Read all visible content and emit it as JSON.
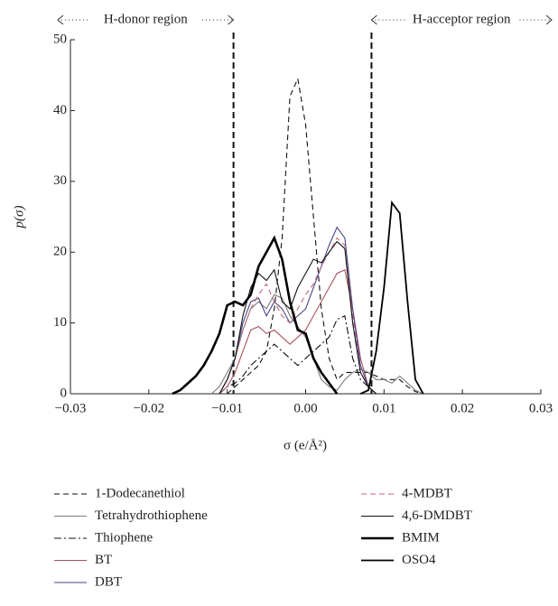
{
  "chart_data": {
    "type": "line",
    "xlabel": "σ (e/Å²)",
    "ylabel": "p(σ)",
    "annotations": [
      {
        "text": "H-donor region",
        "x": -0.0092
      },
      {
        "text": "H-acceptor region",
        "x": 0.0084
      }
    ],
    "x": [
      -0.018,
      -0.017,
      -0.016,
      -0.015,
      -0.014,
      -0.013,
      -0.012,
      -0.011,
      -0.01,
      -0.009,
      -0.008,
      -0.007,
      -0.006,
      -0.005,
      -0.004,
      -0.003,
      -0.002,
      -0.001,
      0,
      0.001,
      0.002,
      0.003,
      0.004,
      0.005,
      0.006,
      0.007,
      0.008,
      0.009,
      0.01,
      0.011,
      0.012,
      0.013,
      0.014,
      0.015,
      0.016
    ],
    "xlim": [
      -0.03,
      0.03
    ],
    "xticks": [
      {
        "value": -0.03,
        "label": "−0.03"
      },
      {
        "value": -0.02,
        "label": "−0.02"
      },
      {
        "value": -0.01,
        "label": "−0.01"
      },
      {
        "value": 0,
        "label": "0.00"
      },
      0.01,
      0.02,
      0.03
    ],
    "ylim": [
      0,
      50
    ],
    "yticks": [
      0,
      10,
      20,
      30,
      40,
      50
    ],
    "series": [
      {
        "name": "1-Dodecanethiol",
        "color": "#111111",
        "dash": "dashed",
        "style": "thin",
        "values": [
          null,
          null,
          null,
          null,
          null,
          null,
          null,
          null,
          0,
          1,
          2,
          3,
          4,
          6,
          12,
          22,
          42,
          44.5,
          38,
          25,
          12,
          5,
          2,
          3,
          3,
          3,
          3,
          2.5,
          2,
          2,
          2,
          1,
          0.3,
          0,
          null
        ]
      },
      {
        "name": "Tetrahydrothiophene",
        "color": "#7a7a7a",
        "dash": "solid",
        "style": "thin",
        "values": [
          null,
          null,
          null,
          null,
          null,
          null,
          0,
          1,
          3,
          5,
          9,
          12,
          13,
          12,
          14,
          13.5,
          11,
          9.5,
          8,
          5,
          2,
          1,
          0.5,
          2,
          3,
          3.5,
          3,
          2,
          2,
          1.5,
          2.5,
          1.5,
          0.5,
          0,
          null
        ]
      },
      {
        "name": "Thiophene",
        "color": "#111111",
        "dash": "dashdot",
        "style": "thin",
        "values": [
          null,
          null,
          null,
          null,
          null,
          null,
          null,
          0,
          1,
          1.5,
          2.5,
          4,
          5,
          6,
          7,
          6,
          5,
          4,
          5,
          6,
          7,
          8,
          10.5,
          11,
          5,
          2,
          1,
          0,
          null,
          null,
          null,
          null,
          null,
          null,
          null
        ]
      },
      {
        "name": "BT",
        "color": "#a8525f",
        "dash": "solid",
        "style": "thin",
        "values": [
          null,
          null,
          null,
          null,
          null,
          null,
          null,
          0,
          1,
          3,
          6,
          9,
          9.5,
          8.5,
          9,
          8,
          7,
          8,
          9,
          11,
          13,
          15,
          17,
          17.5,
          12,
          5,
          1,
          0,
          null,
          null,
          null,
          null,
          null,
          null,
          null
        ]
      },
      {
        "name": "DBT",
        "color": "#46458a",
        "dash": "solid",
        "style": "thin",
        "values": [
          null,
          null,
          null,
          null,
          null,
          null,
          null,
          0,
          2,
          5,
          10,
          13,
          13.5,
          11,
          13,
          12,
          10,
          11,
          12,
          15,
          18,
          21,
          23.5,
          22,
          12,
          4,
          1,
          0,
          null,
          null,
          null,
          null,
          null,
          null,
          null
        ]
      },
      {
        "name": "4-MDBT",
        "color": "#c46a78",
        "dash": "dashed",
        "style": "thin",
        "values": [
          null,
          null,
          null,
          null,
          null,
          null,
          null,
          0,
          2,
          5,
          9,
          12,
          14,
          15.5,
          13,
          11,
          10,
          12,
          14,
          15.5,
          18,
          20,
          22,
          21,
          11,
          3,
          1,
          0,
          null,
          null,
          null,
          null,
          null,
          null,
          null
        ]
      },
      {
        "name": "4,6-DMDBT",
        "color": "#111111",
        "dash": "solid",
        "style": "thin",
        "values": [
          null,
          null,
          null,
          null,
          null,
          null,
          null,
          0,
          2,
          5,
          11,
          15,
          17,
          16,
          17.5,
          13,
          12,
          15,
          17,
          19,
          18.5,
          20,
          21.5,
          20.5,
          10,
          3,
          1,
          0,
          null,
          null,
          null,
          null,
          null,
          null,
          null
        ]
      },
      {
        "name": "BMIM",
        "color": "#000000",
        "dash": "solid",
        "style": "thick",
        "values": [
          null,
          0,
          0.5,
          1.5,
          2.5,
          4,
          6,
          8.5,
          12.5,
          13,
          12.5,
          14,
          18,
          20,
          22,
          19,
          13,
          9,
          8.5,
          5,
          3,
          1.5,
          0,
          null,
          null,
          null,
          null,
          null,
          null,
          null,
          null,
          null,
          null,
          null,
          null
        ]
      },
      {
        "name": "OSO4",
        "color": "#000000",
        "dash": "solid",
        "style": "medium",
        "values": [
          null,
          null,
          null,
          null,
          null,
          null,
          null,
          null,
          null,
          null,
          null,
          null,
          null,
          null,
          null,
          null,
          null,
          null,
          null,
          null,
          null,
          null,
          null,
          null,
          null,
          0,
          0.5,
          6,
          15,
          27,
          25.5,
          13,
          2,
          0,
          null
        ]
      }
    ]
  }
}
